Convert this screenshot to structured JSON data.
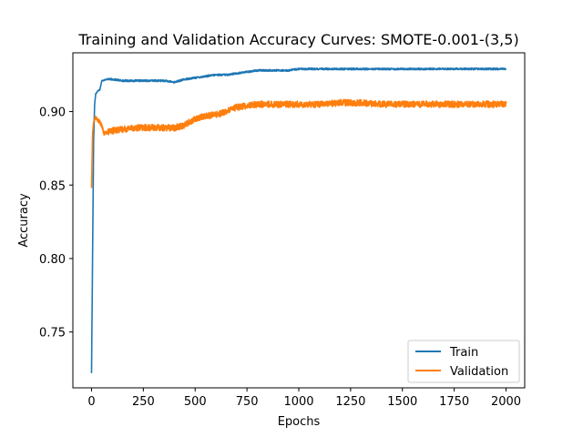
{
  "chart_data": {
    "type": "line",
    "title": "Training and Validation Accuracy Curves: SMOTE-0.001-(3,5)",
    "xlabel": "Epochs",
    "ylabel": "Accuracy",
    "xlim": [
      -90,
      2090
    ],
    "ylim": [
      0.712,
      0.94
    ],
    "xticks": [
      0,
      250,
      500,
      750,
      1000,
      1250,
      1500,
      1750,
      2000
    ],
    "yticks": [
      0.75,
      0.8,
      0.85,
      0.9
    ],
    "ytick_labels": [
      "0.75",
      "0.80",
      "0.85",
      "0.90"
    ],
    "grid": false,
    "legend_position": "lower-right",
    "series": [
      {
        "name": "Train",
        "color": "#1f77b4",
        "x": [
          0,
          5,
          10,
          15,
          20,
          30,
          40,
          50,
          75,
          100,
          150,
          200,
          250,
          300,
          350,
          400,
          450,
          500,
          550,
          600,
          650,
          700,
          750,
          800,
          850,
          900,
          950,
          1000,
          1100,
          1200,
          1300,
          1400,
          1500,
          1600,
          1700,
          1800,
          1900,
          1950,
          2000
        ],
        "y": [
          0.722,
          0.8,
          0.88,
          0.905,
          0.912,
          0.914,
          0.915,
          0.921,
          0.922,
          0.922,
          0.921,
          0.921,
          0.921,
          0.921,
          0.921,
          0.92,
          0.922,
          0.923,
          0.924,
          0.925,
          0.925,
          0.926,
          0.927,
          0.928,
          0.928,
          0.928,
          0.928,
          0.929,
          0.929,
          0.929,
          0.929,
          0.929,
          0.929,
          0.929,
          0.929,
          0.929,
          0.929,
          0.929,
          0.929
        ],
        "noise": 0.0006
      },
      {
        "name": "Validation",
        "color": "#ff7f0e",
        "x": [
          0,
          5,
          10,
          20,
          30,
          40,
          50,
          60,
          75,
          100,
          150,
          200,
          250,
          300,
          350,
          400,
          450,
          500,
          550,
          600,
          650,
          700,
          750,
          800,
          850,
          900,
          950,
          1000,
          1100,
          1200,
          1300,
          1400,
          1500,
          1600,
          1700,
          1800,
          1900,
          1950,
          2000
        ],
        "y": [
          0.848,
          0.885,
          0.893,
          0.896,
          0.894,
          0.893,
          0.89,
          0.885,
          0.886,
          0.887,
          0.888,
          0.889,
          0.889,
          0.889,
          0.889,
          0.889,
          0.891,
          0.895,
          0.897,
          0.898,
          0.9,
          0.903,
          0.904,
          0.905,
          0.905,
          0.905,
          0.905,
          0.905,
          0.905,
          0.906,
          0.906,
          0.905,
          0.905,
          0.905,
          0.905,
          0.905,
          0.905,
          0.905,
          0.905
        ],
        "noise": 0.0022
      }
    ]
  }
}
